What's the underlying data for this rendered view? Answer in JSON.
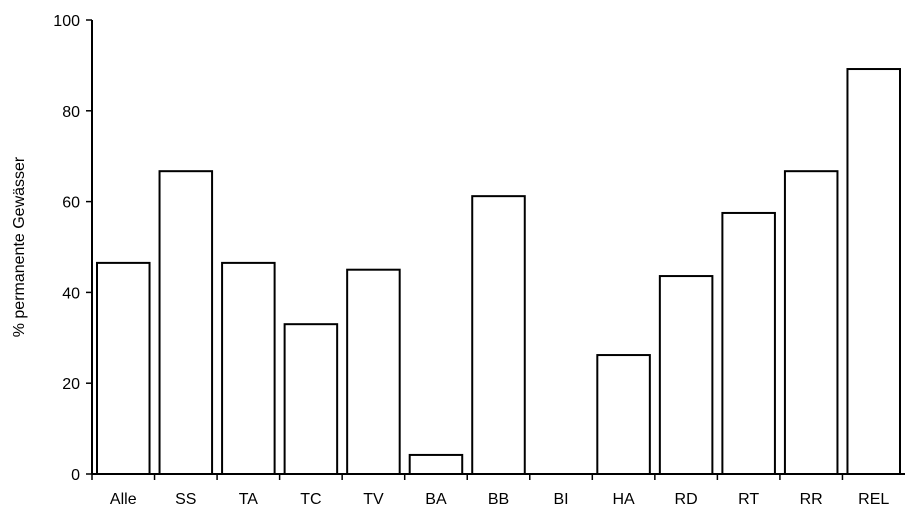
{
  "chart_data": {
    "type": "bar",
    "title": "",
    "xlabel": "",
    "ylabel": "% permanente Gewässer",
    "categories": [
      "Alle",
      "SS",
      "TA",
      "TC",
      "TV",
      "BA",
      "BB",
      "BI",
      "HA",
      "RD",
      "RT",
      "RR",
      "REL"
    ],
    "values": [
      46.5,
      66.7,
      46.5,
      33.0,
      45.0,
      4.2,
      61.2,
      0,
      26.2,
      43.6,
      57.5,
      66.7,
      89.2
    ],
    "ylim": [
      0,
      100
    ],
    "yticks": [
      0,
      20,
      40,
      60,
      80,
      100
    ],
    "grid": false,
    "legend": "none",
    "colors": {
      "bar_fill": "#ffffff",
      "bar_stroke": "#000000"
    }
  }
}
